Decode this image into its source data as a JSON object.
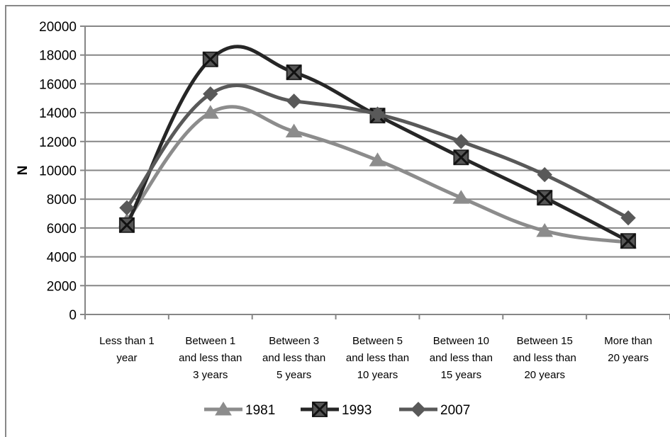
{
  "chart_data": {
    "type": "line",
    "title": "",
    "xlabel": "",
    "ylabel": "N",
    "ylim": [
      0,
      20000
    ],
    "ytick_step": 2000,
    "grid": true,
    "legend_position": "bottom",
    "categories": [
      [
        "Less than 1",
        "year"
      ],
      [
        "Between 1",
        "and less than",
        "3 years"
      ],
      [
        "Between 3",
        "and less than",
        "5 years"
      ],
      [
        "Between 5",
        "and less than",
        "10 years"
      ],
      [
        "Between 10",
        "and less than",
        "15 years"
      ],
      [
        "Between 15",
        "and less than",
        "20 years"
      ],
      [
        "More than",
        "20 years"
      ]
    ],
    "series": [
      {
        "name": "1981",
        "color": "#8c8c8c",
        "marker": "triangle",
        "values": [
          6500,
          14000,
          12700,
          10700,
          8100,
          5800,
          5000
        ]
      },
      {
        "name": "1993",
        "color": "#262626",
        "marker": "x-box",
        "values": [
          6200,
          17700,
          16800,
          13800,
          10900,
          8100,
          5100
        ]
      },
      {
        "name": "2007",
        "color": "#595959",
        "marker": "diamond",
        "values": [
          7400,
          15300,
          14800,
          13900,
          12000,
          9700,
          6700
        ]
      }
    ]
  }
}
